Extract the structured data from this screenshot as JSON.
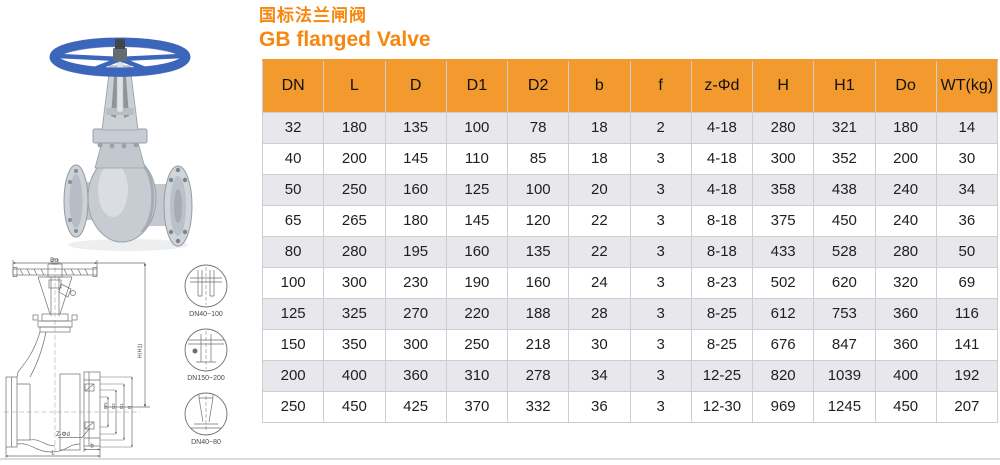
{
  "header": {
    "title_zh": "国标法兰闸阀",
    "title_en": "GB flanged Valve"
  },
  "colors": {
    "accent": "#f6870f",
    "table_header_bg": "#f29a2e",
    "row_alt_bg": "#e8e8ec",
    "grid_line": "#cdced2",
    "handwheel_blue": "#3b66bb"
  },
  "table": {
    "columns": [
      "DN",
      "L",
      "D",
      "D1",
      "D2",
      "b",
      "f",
      "z-Φd",
      "H",
      "H1",
      "Do",
      "WT(kg)"
    ],
    "rows": [
      [
        "32",
        "180",
        "135",
        "100",
        "78",
        "18",
        "2",
        "4-18",
        "280",
        "321",
        "180",
        "14"
      ],
      [
        "40",
        "200",
        "145",
        "110",
        "85",
        "18",
        "3",
        "4-18",
        "300",
        "352",
        "200",
        "30"
      ],
      [
        "50",
        "250",
        "160",
        "125",
        "100",
        "20",
        "3",
        "4-18",
        "358",
        "438",
        "240",
        "34"
      ],
      [
        "65",
        "265",
        "180",
        "145",
        "120",
        "22",
        "3",
        "8-18",
        "375",
        "450",
        "240",
        "36"
      ],
      [
        "80",
        "280",
        "195",
        "160",
        "135",
        "22",
        "3",
        "8-18",
        "433",
        "528",
        "280",
        "50"
      ],
      [
        "100",
        "300",
        "230",
        "190",
        "160",
        "24",
        "3",
        "8-23",
        "502",
        "620",
        "320",
        "69"
      ],
      [
        "125",
        "325",
        "270",
        "220",
        "188",
        "28",
        "3",
        "8-25",
        "612",
        "753",
        "360",
        "116"
      ],
      [
        "150",
        "350",
        "300",
        "250",
        "218",
        "30",
        "3",
        "8-25",
        "676",
        "847",
        "360",
        "141"
      ],
      [
        "200",
        "400",
        "360",
        "310",
        "278",
        "34",
        "3",
        "12-25",
        "820",
        "1039",
        "400",
        "192"
      ],
      [
        "250",
        "450",
        "425",
        "370",
        "332",
        "36",
        "3",
        "12-30",
        "969",
        "1245",
        "450",
        "207"
      ]
    ]
  },
  "drawing": {
    "dims": {
      "top": "Do",
      "height": "H(H1)",
      "length": "L",
      "flange_thickness": "b",
      "bolt_holes": "Z-Φd"
    },
    "flange_dims": [
      "DN",
      "D2",
      "D1",
      "D"
    ],
    "details": [
      "DN40~100",
      "DN150~200",
      "DN40~80"
    ]
  }
}
